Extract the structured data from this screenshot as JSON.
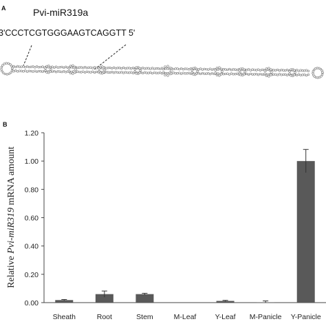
{
  "panel_a": {
    "letter": "A",
    "mirna_name": "Pvi-miR319a",
    "mirna_sequence": "3'CCCTCGTGGGAAGTCAGGTT 5'"
  },
  "chart_data": {
    "type": "bar",
    "panel_letter": "B",
    "categories": [
      "Sheath",
      "Root",
      "Stem",
      "M-Leaf",
      "Y-Leaf",
      "M-Panicle",
      "Y-Panicle"
    ],
    "values": [
      0.018,
      0.06,
      0.06,
      0.0,
      0.012,
      0.002,
      1.0
    ],
    "errors": [
      0.004,
      0.022,
      0.006,
      0.0,
      0.004,
      0.01,
      0.082
    ],
    "ylabel_prefix": "Relative ",
    "ylabel_italic": "Pvi-miR319",
    "ylabel_suffix": " mRNA amount",
    "ylim": [
      0,
      1.2
    ],
    "yticks": [
      "0.00",
      "0.20",
      "0.40",
      "0.60",
      "0.80",
      "1.00",
      "1.20"
    ],
    "bar_color": "#595959",
    "grid": false,
    "legend": "none"
  }
}
